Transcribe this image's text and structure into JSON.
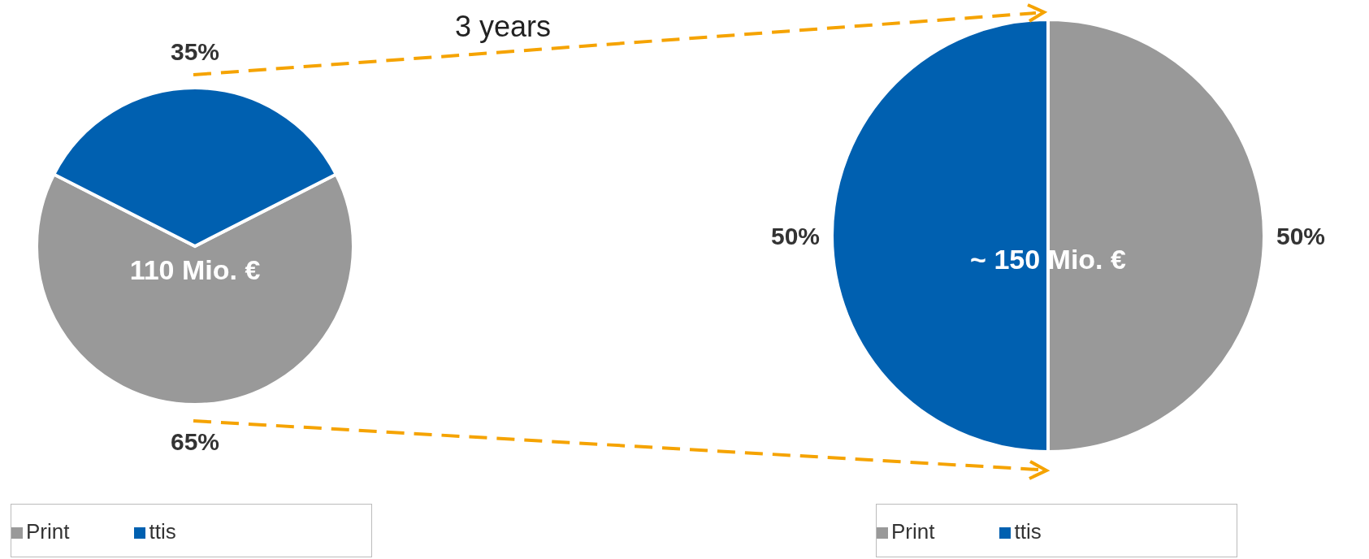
{
  "chart_data": [
    {
      "type": "pie",
      "categories": [
        "Print",
        "ttis"
      ],
      "values": [
        65,
        35
      ],
      "colors": [
        "#999999",
        "#0060b0"
      ],
      "value_labels": [
        "65%",
        "35%"
      ],
      "annotations": [
        "110 Mio. €",
        "3 years"
      ],
      "legend": "bottom"
    },
    {
      "type": "pie",
      "categories": [
        "Print",
        "ttis"
      ],
      "values": [
        50,
        50
      ],
      "colors": [
        "#999999",
        "#0060b0"
      ],
      "value_labels": [
        "50%",
        "50%"
      ],
      "annotations": [
        "~ 150 Mio. €"
      ],
      "legend": "bottom"
    }
  ]
}
